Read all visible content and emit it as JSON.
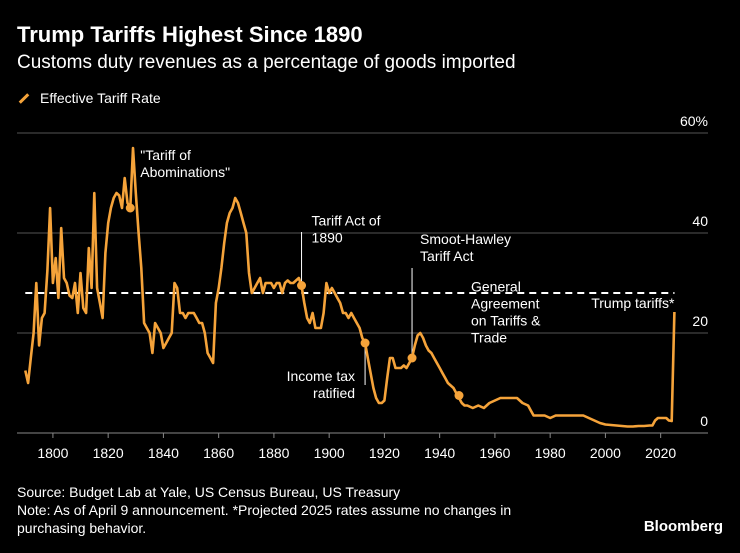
{
  "header": {
    "title": "Trump Tariffs Highest Since 1890",
    "subtitle": "Customs duty revenues as a percentage of goods imported"
  },
  "legend": {
    "label": "Effective Tariff Rate"
  },
  "colors": {
    "series": "#f5a33a",
    "background": "#000000",
    "text": "#ffffff",
    "grid": "#555555"
  },
  "chart_data": {
    "type": "line",
    "title": "Trump Tariffs Highest Since 1890",
    "ylabel": "Customs duty revenues as a percentage of goods imported",
    "xlim": [
      1787,
      2027
    ],
    "ylim": [
      0,
      60
    ],
    "x_ticks": [
      1800,
      1820,
      1840,
      1860,
      1880,
      1900,
      1920,
      1940,
      1960,
      1980,
      2000,
      2020
    ],
    "y_ticks": [
      0,
      20,
      40,
      60
    ],
    "y_tick_labels": [
      "0",
      "20",
      "40",
      "60%"
    ],
    "grid": true,
    "series": [
      {
        "name": "Effective Tariff Rate",
        "points": [
          [
            1790,
            12.5
          ],
          [
            1791,
            10
          ],
          [
            1792,
            15
          ],
          [
            1793,
            20
          ],
          [
            1794,
            30
          ],
          [
            1795,
            17.5
          ],
          [
            1796,
            23
          ],
          [
            1797,
            24
          ],
          [
            1798,
            32.5
          ],
          [
            1799,
            45
          ],
          [
            1800,
            30
          ],
          [
            1801,
            35
          ],
          [
            1802,
            27
          ],
          [
            1803,
            41
          ],
          [
            1804,
            31
          ],
          [
            1805,
            30
          ],
          [
            1806,
            27.5
          ],
          [
            1807,
            27
          ],
          [
            1808,
            30
          ],
          [
            1809,
            24
          ],
          [
            1810,
            32
          ],
          [
            1811,
            25
          ],
          [
            1812,
            24
          ],
          [
            1813,
            37
          ],
          [
            1814,
            29
          ],
          [
            1815,
            48
          ],
          [
            1816,
            29
          ],
          [
            1817,
            26
          ],
          [
            1818,
            23
          ],
          [
            1819,
            36
          ],
          [
            1820,
            42
          ],
          [
            1821,
            45
          ],
          [
            1822,
            47
          ],
          [
            1823,
            48
          ],
          [
            1824,
            47.5
          ],
          [
            1825,
            45
          ],
          [
            1826,
            51
          ],
          [
            1827,
            46
          ],
          [
            1828,
            45
          ],
          [
            1829,
            57
          ],
          [
            1830,
            48
          ],
          [
            1831,
            40
          ],
          [
            1832,
            33
          ],
          [
            1833,
            22
          ],
          [
            1834,
            21
          ],
          [
            1835,
            20
          ],
          [
            1836,
            16
          ],
          [
            1837,
            22
          ],
          [
            1838,
            21
          ],
          [
            1839,
            20
          ],
          [
            1840,
            17
          ],
          [
            1841,
            18
          ],
          [
            1842,
            19
          ],
          [
            1843,
            20
          ],
          [
            1844,
            30
          ],
          [
            1845,
            29
          ],
          [
            1846,
            24
          ],
          [
            1847,
            24
          ],
          [
            1848,
            23
          ],
          [
            1849,
            24
          ],
          [
            1850,
            24
          ],
          [
            1851,
            24
          ],
          [
            1852,
            23
          ],
          [
            1853,
            22
          ],
          [
            1854,
            22
          ],
          [
            1855,
            20
          ],
          [
            1856,
            16
          ],
          [
            1857,
            15
          ],
          [
            1858,
            14
          ],
          [
            1859,
            26
          ],
          [
            1860,
            29
          ],
          [
            1861,
            33
          ],
          [
            1862,
            38
          ],
          [
            1863,
            42
          ],
          [
            1864,
            44
          ],
          [
            1865,
            45
          ],
          [
            1866,
            47
          ],
          [
            1867,
            46
          ],
          [
            1868,
            44
          ],
          [
            1869,
            42
          ],
          [
            1870,
            40
          ],
          [
            1871,
            32
          ],
          [
            1872,
            28
          ],
          [
            1873,
            29
          ],
          [
            1874,
            30
          ],
          [
            1875,
            31
          ],
          [
            1876,
            28
          ],
          [
            1877,
            30
          ],
          [
            1878,
            30
          ],
          [
            1879,
            30
          ],
          [
            1880,
            29
          ],
          [
            1881,
            30
          ],
          [
            1882,
            30
          ],
          [
            1883,
            28
          ],
          [
            1884,
            30
          ],
          [
            1885,
            30.5
          ],
          [
            1886,
            30
          ],
          [
            1887,
            30
          ],
          [
            1888,
            30.5
          ],
          [
            1889,
            31
          ],
          [
            1890,
            29.5
          ],
          [
            1891,
            26
          ],
          [
            1892,
            23
          ],
          [
            1893,
            22
          ],
          [
            1894,
            24
          ],
          [
            1895,
            21
          ],
          [
            1896,
            21
          ],
          [
            1897,
            21
          ],
          [
            1898,
            24
          ],
          [
            1899,
            30
          ],
          [
            1900,
            28
          ],
          [
            1901,
            29
          ],
          [
            1902,
            28
          ],
          [
            1903,
            27
          ],
          [
            1904,
            26
          ],
          [
            1905,
            24
          ],
          [
            1906,
            24
          ],
          [
            1907,
            23
          ],
          [
            1908,
            24
          ],
          [
            1909,
            23
          ],
          [
            1910,
            22
          ],
          [
            1911,
            21
          ],
          [
            1912,
            19
          ],
          [
            1913,
            18
          ],
          [
            1914,
            15
          ],
          [
            1915,
            12
          ],
          [
            1916,
            9
          ],
          [
            1917,
            7
          ],
          [
            1918,
            6
          ],
          [
            1919,
            6
          ],
          [
            1920,
            6.5
          ],
          [
            1921,
            11
          ],
          [
            1922,
            15
          ],
          [
            1923,
            15
          ],
          [
            1924,
            13
          ],
          [
            1925,
            13
          ],
          [
            1926,
            13
          ],
          [
            1927,
            13.5
          ],
          [
            1928,
            13
          ],
          [
            1929,
            14
          ],
          [
            1930,
            15
          ],
          [
            1931,
            17.5
          ],
          [
            1932,
            19.5
          ],
          [
            1933,
            20
          ],
          [
            1934,
            19
          ],
          [
            1935,
            17.5
          ],
          [
            1936,
            16.5
          ],
          [
            1937,
            16
          ],
          [
            1938,
            15
          ],
          [
            1939,
            14
          ],
          [
            1940,
            13
          ],
          [
            1941,
            12
          ],
          [
            1942,
            11
          ],
          [
            1943,
            10
          ],
          [
            1944,
            9.5
          ],
          [
            1945,
            9
          ],
          [
            1946,
            8
          ],
          [
            1947,
            7
          ],
          [
            1948,
            6
          ],
          [
            1949,
            5.5
          ],
          [
            1950,
            5.5
          ],
          [
            1952,
            5
          ],
          [
            1954,
            5.5
          ],
          [
            1956,
            5
          ],
          [
            1958,
            6
          ],
          [
            1960,
            6.5
          ],
          [
            1962,
            7
          ],
          [
            1964,
            7
          ],
          [
            1966,
            7
          ],
          [
            1968,
            7
          ],
          [
            1970,
            6
          ],
          [
            1972,
            5.5
          ],
          [
            1973,
            4.5
          ],
          [
            1974,
            3.5
          ],
          [
            1976,
            3.5
          ],
          [
            1978,
            3.5
          ],
          [
            1980,
            3
          ],
          [
            1982,
            3.5
          ],
          [
            1984,
            3.5
          ],
          [
            1986,
            3.5
          ],
          [
            1988,
            3.5
          ],
          [
            1990,
            3.5
          ],
          [
            1992,
            3.5
          ],
          [
            1994,
            3
          ],
          [
            1996,
            2.5
          ],
          [
            1998,
            2
          ],
          [
            2000,
            1.7
          ],
          [
            2002,
            1.6
          ],
          [
            2004,
            1.5
          ],
          [
            2006,
            1.4
          ],
          [
            2008,
            1.3
          ],
          [
            2010,
            1.3
          ],
          [
            2012,
            1.4
          ],
          [
            2014,
            1.4
          ],
          [
            2016,
            1.5
          ],
          [
            2017,
            1.5
          ],
          [
            2018,
            2.5
          ],
          [
            2019,
            3
          ],
          [
            2020,
            3
          ],
          [
            2021,
            3
          ],
          [
            2022,
            3
          ],
          [
            2023,
            2.5
          ],
          [
            2024,
            2.4
          ],
          [
            2025,
            25
          ]
        ]
      },
      {
        "name": "Trump tariffs*",
        "type": "reference_line",
        "value": 28,
        "x_range": [
          1790,
          2025
        ]
      }
    ],
    "annotations": [
      {
        "text": [
          "\"Tariff of",
          "Abominations\""
        ],
        "x": 1828,
        "y": 45
      },
      {
        "text": [
          "Tariff Act of",
          "1890"
        ],
        "x": 1890,
        "y": 29.5
      },
      {
        "text": [
          "Smoot-Hawley",
          "Tariff Act"
        ],
        "x": 1930,
        "y": 15
      },
      {
        "text": [
          "General",
          "Agreement",
          "on Tariffs &",
          "Trade"
        ],
        "x": 1947,
        "y": 7.5
      },
      {
        "text": [
          "Income tax",
          "ratified"
        ],
        "x": 1913,
        "y": 18
      },
      {
        "text": [
          "Trump tariffs*"
        ],
        "x": 2025,
        "y": 28
      }
    ]
  },
  "footer": {
    "source": "Source: Budget Lab at Yale, US Census Bureau, US Treasury",
    "note_line1": "Note: As of April 9 announcement. *Projected 2025 rates assume no changes in",
    "note_line2": "purchasing behavior.",
    "brand": "Bloomberg"
  }
}
